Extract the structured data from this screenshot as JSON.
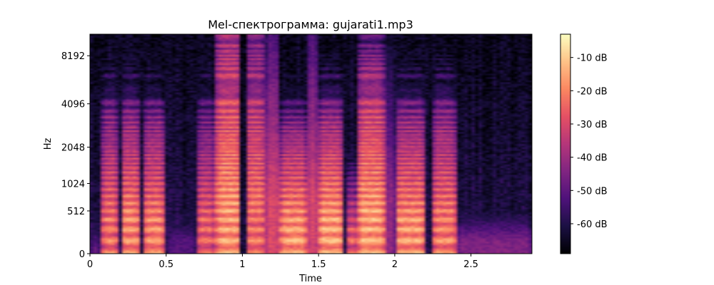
{
  "chart_data": {
    "type": "heatmap",
    "title": "Mel-спектрограмма: gujarati1.mp3",
    "xlabel": "Time",
    "ylabel": "Hz",
    "x_range": [
      0,
      2.9
    ],
    "x_ticks": [
      {
        "value": 0,
        "label": "0"
      },
      {
        "value": 0.5,
        "label": "0.5"
      },
      {
        "value": 1,
        "label": "1"
      },
      {
        "value": 1.5,
        "label": "1.5"
      },
      {
        "value": 2,
        "label": "2"
      },
      {
        "value": 2.5,
        "label": "2.5"
      }
    ],
    "y_scale": "mel",
    "y_range_hz": [
      0,
      11025
    ],
    "y_ticks": [
      {
        "value": 0,
        "label": "0"
      },
      {
        "value": 512,
        "label": "512"
      },
      {
        "value": 1024,
        "label": "1024"
      },
      {
        "value": 2048,
        "label": "2048"
      },
      {
        "value": 4096,
        "label": "4096"
      },
      {
        "value": 8192,
        "label": "8192"
      }
    ],
    "colorbar": {
      "colormap": "magma",
      "range_db": [
        -69,
        -3
      ],
      "ticks": [
        {
          "value": -10,
          "label": "-10 dB"
        },
        {
          "value": -20,
          "label": "-20 dB"
        },
        {
          "value": -30,
          "label": "-30 dB"
        },
        {
          "value": -40,
          "label": "-40 dB"
        },
        {
          "value": -50,
          "label": "-50 dB"
        },
        {
          "value": -60,
          "label": "-60 dB"
        }
      ]
    },
    "segments": [
      {
        "t0": 0.0,
        "t1": 0.07,
        "peak": -50,
        "top_hz": 500,
        "harmonic": false
      },
      {
        "t0": 0.08,
        "t1": 0.18,
        "peak": -16,
        "top_hz": 3500,
        "harmonic": true
      },
      {
        "t0": 0.2,
        "t1": 0.33,
        "peak": -13,
        "top_hz": 3200,
        "harmonic": true
      },
      {
        "t0": 0.35,
        "t1": 0.49,
        "peak": -14,
        "top_hz": 3000,
        "harmonic": true
      },
      {
        "t0": 0.5,
        "t1": 0.7,
        "peak": -52,
        "top_hz": 700,
        "harmonic": false
      },
      {
        "t0": 0.7,
        "t1": 0.82,
        "peak": -20,
        "top_hz": 3500,
        "harmonic": true
      },
      {
        "t0": 0.83,
        "t1": 0.99,
        "peak": -11,
        "top_hz": 11000,
        "harmonic": true
      },
      {
        "t0": 1.02,
        "t1": 1.15,
        "peak": -17,
        "top_hz": 11000,
        "harmonic": true
      },
      {
        "t0": 1.15,
        "t1": 1.25,
        "peak": -30,
        "top_hz": 11000,
        "harmonic": false
      },
      {
        "t0": 1.25,
        "t1": 1.42,
        "peak": -11,
        "top_hz": 2500,
        "harmonic": true
      },
      {
        "t0": 1.42,
        "t1": 1.5,
        "peak": -30,
        "top_hz": 11000,
        "harmonic": false
      },
      {
        "t0": 1.5,
        "t1": 1.66,
        "peak": -10,
        "top_hz": 3000,
        "harmonic": true
      },
      {
        "t0": 1.68,
        "t1": 1.76,
        "peak": -20,
        "top_hz": 1200,
        "harmonic": true
      },
      {
        "t0": 1.76,
        "t1": 1.93,
        "peak": -10,
        "top_hz": 6000,
        "harmonic": true
      },
      {
        "t0": 1.93,
        "t1": 2.0,
        "peak": -40,
        "top_hz": 11000,
        "harmonic": false
      },
      {
        "t0": 2.0,
        "t1": 2.2,
        "peak": -12,
        "top_hz": 3000,
        "harmonic": true
      },
      {
        "t0": 2.25,
        "t1": 2.4,
        "peak": -15,
        "top_hz": 3500,
        "harmonic": true
      },
      {
        "t0": 2.4,
        "t1": 2.9,
        "peak": -45,
        "top_hz": 600,
        "harmonic": false
      }
    ]
  }
}
